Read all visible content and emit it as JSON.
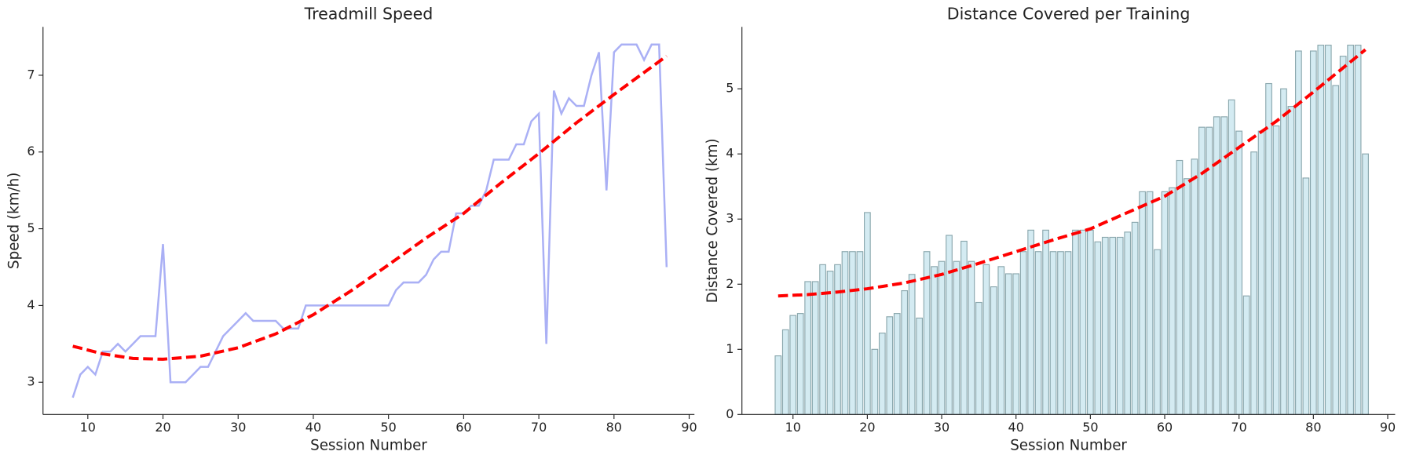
{
  "chart_data": [
    {
      "type": "line",
      "title": "Treadmill Speed",
      "xlabel": "Session Number",
      "ylabel": "Speed (km/h)",
      "x": [
        8,
        9,
        10,
        11,
        12,
        13,
        14,
        15,
        16,
        17,
        18,
        19,
        20,
        21,
        22,
        23,
        24,
        25,
        26,
        27,
        28,
        29,
        30,
        31,
        32,
        33,
        34,
        35,
        36,
        37,
        38,
        39,
        40,
        41,
        42,
        43,
        44,
        45,
        46,
        47,
        48,
        49,
        50,
        51,
        52,
        53,
        54,
        55,
        56,
        57,
        58,
        59,
        60,
        61,
        62,
        63,
        64,
        65,
        66,
        67,
        68,
        69,
        70,
        71,
        72,
        73,
        74,
        75,
        76,
        77,
        78,
        79,
        80,
        81,
        82,
        83,
        84,
        85,
        86,
        87
      ],
      "values": [
        2.8,
        3.1,
        3.2,
        3.1,
        3.4,
        3.4,
        3.5,
        3.4,
        3.5,
        3.6,
        3.6,
        3.6,
        4.8,
        3.0,
        3.0,
        3.0,
        3.1,
        3.2,
        3.2,
        3.4,
        3.6,
        3.7,
        3.8,
        3.9,
        3.8,
        3.8,
        3.8,
        3.8,
        3.7,
        3.7,
        3.7,
        4.0,
        4.0,
        4.0,
        4.0,
        4.0,
        4.0,
        4.0,
        4.0,
        4.0,
        4.0,
        4.0,
        4.0,
        4.2,
        4.3,
        4.3,
        4.3,
        4.4,
        4.6,
        4.7,
        4.7,
        5.2,
        5.2,
        5.3,
        5.3,
        5.5,
        5.9,
        5.9,
        5.9,
        6.1,
        6.1,
        6.4,
        6.5,
        3.5,
        6.8,
        6.5,
        6.7,
        6.6,
        6.6,
        7.0,
        7.3,
        5.5,
        7.3,
        7.4,
        7.4,
        7.4,
        7.2,
        7.4,
        7.4,
        4.5
      ],
      "color": "#aab0f5",
      "trend": {
        "x": [
          8,
          12,
          16,
          20,
          25,
          30,
          35,
          40,
          45,
          50,
          55,
          60,
          65,
          70,
          75,
          80,
          87
        ],
        "values": [
          3.47,
          3.37,
          3.31,
          3.3,
          3.34,
          3.45,
          3.63,
          3.88,
          4.19,
          4.53,
          4.88,
          5.2,
          5.6,
          5.98,
          6.38,
          6.75,
          7.25
        ],
        "color": "#ff0000"
      },
      "xlim": [
        4.04,
        90.7
      ],
      "ylim": [
        2.58,
        7.63
      ],
      "xticks": [
        10,
        20,
        30,
        40,
        50,
        60,
        70,
        80,
        90
      ],
      "yticks": [
        3,
        4,
        5,
        6,
        7
      ]
    },
    {
      "type": "bar",
      "title": "Distance Covered per Training",
      "xlabel": "Session Number",
      "ylabel": "Distance Covered (km)",
      "x": [
        8,
        9,
        10,
        11,
        12,
        13,
        14,
        15,
        16,
        17,
        18,
        19,
        20,
        21,
        22,
        23,
        24,
        25,
        26,
        27,
        28,
        29,
        30,
        31,
        32,
        33,
        34,
        35,
        36,
        37,
        38,
        39,
        40,
        41,
        42,
        43,
        44,
        45,
        46,
        47,
        48,
        49,
        50,
        51,
        52,
        53,
        54,
        55,
        56,
        57,
        58,
        59,
        60,
        61,
        62,
        63,
        64,
        65,
        66,
        67,
        68,
        69,
        70,
        71,
        72,
        73,
        74,
        75,
        76,
        77,
        78,
        79,
        80,
        81,
        82,
        83,
        84,
        85,
        86,
        87
      ],
      "values": [
        0.9,
        1.3,
        1.52,
        1.55,
        2.04,
        2.04,
        2.3,
        2.2,
        2.3,
        2.5,
        2.5,
        2.5,
        3.1,
        1.0,
        1.25,
        1.5,
        1.55,
        1.9,
        2.15,
        1.48,
        2.5,
        2.27,
        2.35,
        2.75,
        2.35,
        2.66,
        2.35,
        1.72,
        2.3,
        1.96,
        2.27,
        2.16,
        2.16,
        2.5,
        2.83,
        2.5,
        2.83,
        2.5,
        2.5,
        2.5,
        2.83,
        2.83,
        2.83,
        2.65,
        2.72,
        2.72,
        2.72,
        2.8,
        2.95,
        3.42,
        3.42,
        2.53,
        3.42,
        3.48,
        3.9,
        3.62,
        3.92,
        4.41,
        4.41,
        4.57,
        4.57,
        4.83,
        4.35,
        1.82,
        4.03,
        4.35,
        5.08,
        4.43,
        5.0,
        4.73,
        5.58,
        3.63,
        5.58,
        5.67,
        5.67,
        5.05,
        5.5,
        5.67,
        5.67,
        4.0
      ],
      "color": "#d4ebf2",
      "edgecolor": "#8aa7ad",
      "trend": {
        "x": [
          8,
          12,
          16,
          20,
          25,
          30,
          35,
          40,
          45,
          50,
          55,
          60,
          65,
          70,
          75,
          80,
          87
        ],
        "values": [
          1.82,
          1.84,
          1.88,
          1.93,
          2.02,
          2.15,
          2.32,
          2.5,
          2.68,
          2.85,
          3.1,
          3.35,
          3.7,
          4.1,
          4.5,
          4.95,
          5.6
        ],
        "color": "#ff0000"
      },
      "xlim": [
        3.13,
        91.0
      ],
      "ylim": [
        0,
        5.95
      ],
      "xticks": [
        10,
        20,
        30,
        40,
        50,
        60,
        70,
        80,
        90
      ],
      "yticks": [
        0,
        1,
        2,
        3,
        4,
        5
      ]
    }
  ]
}
